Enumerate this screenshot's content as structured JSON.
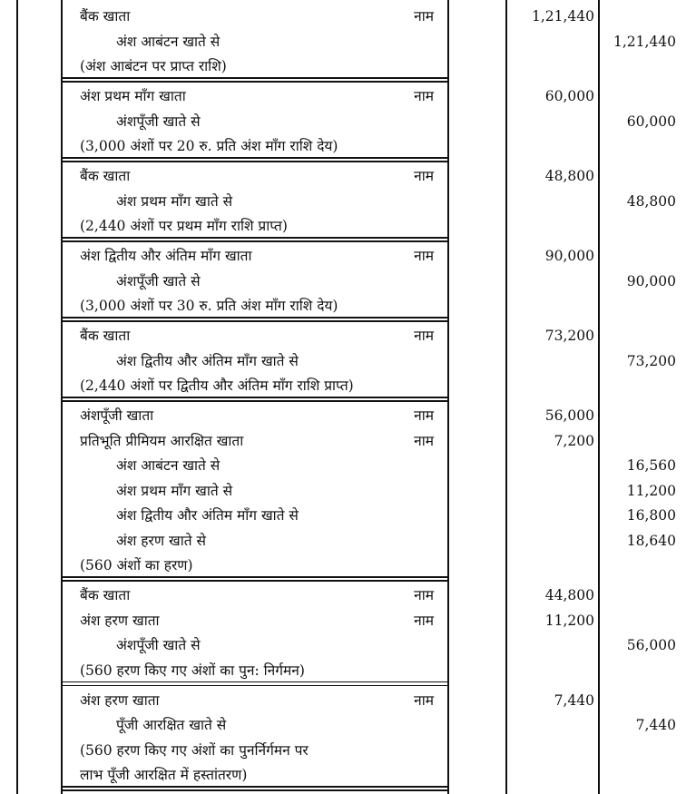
{
  "entries": [
    {
      "rows": [
        {
          "particulars": "बैंक खाता",
          "dr": "नाम",
          "debit": "1,21,440"
        },
        {
          "particulars": "अंश आबंटन खाते से",
          "credit": "1,21,440"
        },
        {
          "particulars": "(अंश आबंटन पर प्राप्त राशि)"
        }
      ]
    },
    {
      "rows": [
        {
          "particulars": "अंश प्रथम माँग खाता",
          "dr": "नाम",
          "debit": "60,000"
        },
        {
          "particulars": "अंशपूँजी खाते से",
          "credit": "60,000"
        },
        {
          "particulars": "(3,000 अंशों पर 20 रु. प्रति अंश माँग राशि देय)"
        }
      ]
    },
    {
      "rows": [
        {
          "particulars": "बैंक खाता",
          "dr": "नाम",
          "debit": "48,800"
        },
        {
          "particulars": "अंश प्रथम माँग खाते से",
          "credit": "48,800"
        },
        {
          "particulars": "(2,440 अंशों पर प्रथम माँग राशि प्राप्त)"
        }
      ]
    },
    {
      "rows": [
        {
          "particulars": "अंश द्वितीय और अंतिम माँग खाता",
          "dr": "नाम",
          "debit": "90,000"
        },
        {
          "particulars": "अंशपूँजी खाते से",
          "credit": "90,000"
        },
        {
          "particulars": "(3,000 अंशों पर 30 रु. प्रति अंश माँग राशि देय)"
        }
      ]
    },
    {
      "rows": [
        {
          "particulars": "बैंक खाता",
          "dr": "नाम",
          "debit": "73,200"
        },
        {
          "particulars": "अंश द्वितीय और अंतिम माँग खाते से",
          "credit": "73,200"
        },
        {
          "particulars": "(2,440 अंशों पर द्वितीय और अंतिम माँग राशि प्राप्त)"
        }
      ]
    },
    {
      "rows": [
        {
          "particulars": "अंशपूँजी खाता",
          "dr": "नाम",
          "debit": "56,000"
        },
        {
          "particulars": "प्रतिभूति प्रीमियम आरक्षित खाता",
          "dr": "नाम",
          "debit": "7,200"
        },
        {
          "particulars": "अंश आबंटन खाते से",
          "credit": "16,560"
        },
        {
          "particulars": "अंश प्रथम माँग खाते से",
          "credit": "11,200"
        },
        {
          "particulars": "अंश द्वितीय और अंतिम माँग खाते से",
          "credit": "16,800"
        },
        {
          "particulars": "अंश हरण खाते से",
          "credit": "18,640"
        },
        {
          "particulars": "(560 अंशों का हरण)"
        }
      ]
    },
    {
      "rows": [
        {
          "particulars": "बैंक खाता",
          "dr": "नाम",
          "debit": "44,800"
        },
        {
          "particulars": "अंश हरण खाता",
          "dr": "नाम",
          "debit": "11,200"
        },
        {
          "particulars": "अंशपूँजी खाते से",
          "credit": "56,000"
        },
        {
          "particulars": "(560 हरण किए गए अंशों का पुन: निर्गमन)"
        }
      ]
    },
    {
      "rows": [
        {
          "particulars": "अंश हरण खाता",
          "dr": "नाम",
          "debit": "7,440"
        },
        {
          "particulars": "पूँजी आरक्षित खाते से",
          "credit": "7,440"
        },
        {
          "particulars": "(560 हरण किए गए अंशों का पुनर्निर्गमन पर"
        },
        {
          "particulars": "लाभ पूँजी आरक्षित में हस्तांतरण)"
        }
      ]
    }
  ]
}
